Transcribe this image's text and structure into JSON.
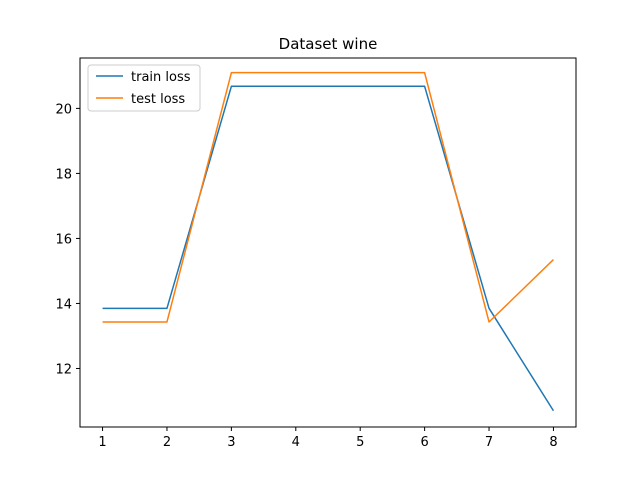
{
  "chart_data": {
    "type": "line",
    "title": "Dataset wine",
    "xlabel": "",
    "ylabel": "",
    "x": [
      1,
      2,
      3,
      4,
      5,
      6,
      7,
      8
    ],
    "xlim": [
      0.65,
      8.35
    ],
    "ylim": [
      10.2,
      21.55
    ],
    "xticks": [
      1,
      2,
      3,
      4,
      5,
      6,
      7,
      8
    ],
    "yticks": [
      12,
      14,
      16,
      18,
      20
    ],
    "grid": false,
    "legend_position": "top-left",
    "series": [
      {
        "name": "train loss",
        "color": "#1f77b4",
        "values": [
          13.85,
          13.85,
          20.68,
          20.68,
          20.68,
          20.68,
          13.85,
          10.7
        ]
      },
      {
        "name": "test loss",
        "color": "#ff7f0e",
        "values": [
          13.43,
          13.43,
          21.1,
          21.1,
          21.1,
          21.1,
          13.43,
          15.35
        ]
      }
    ]
  }
}
